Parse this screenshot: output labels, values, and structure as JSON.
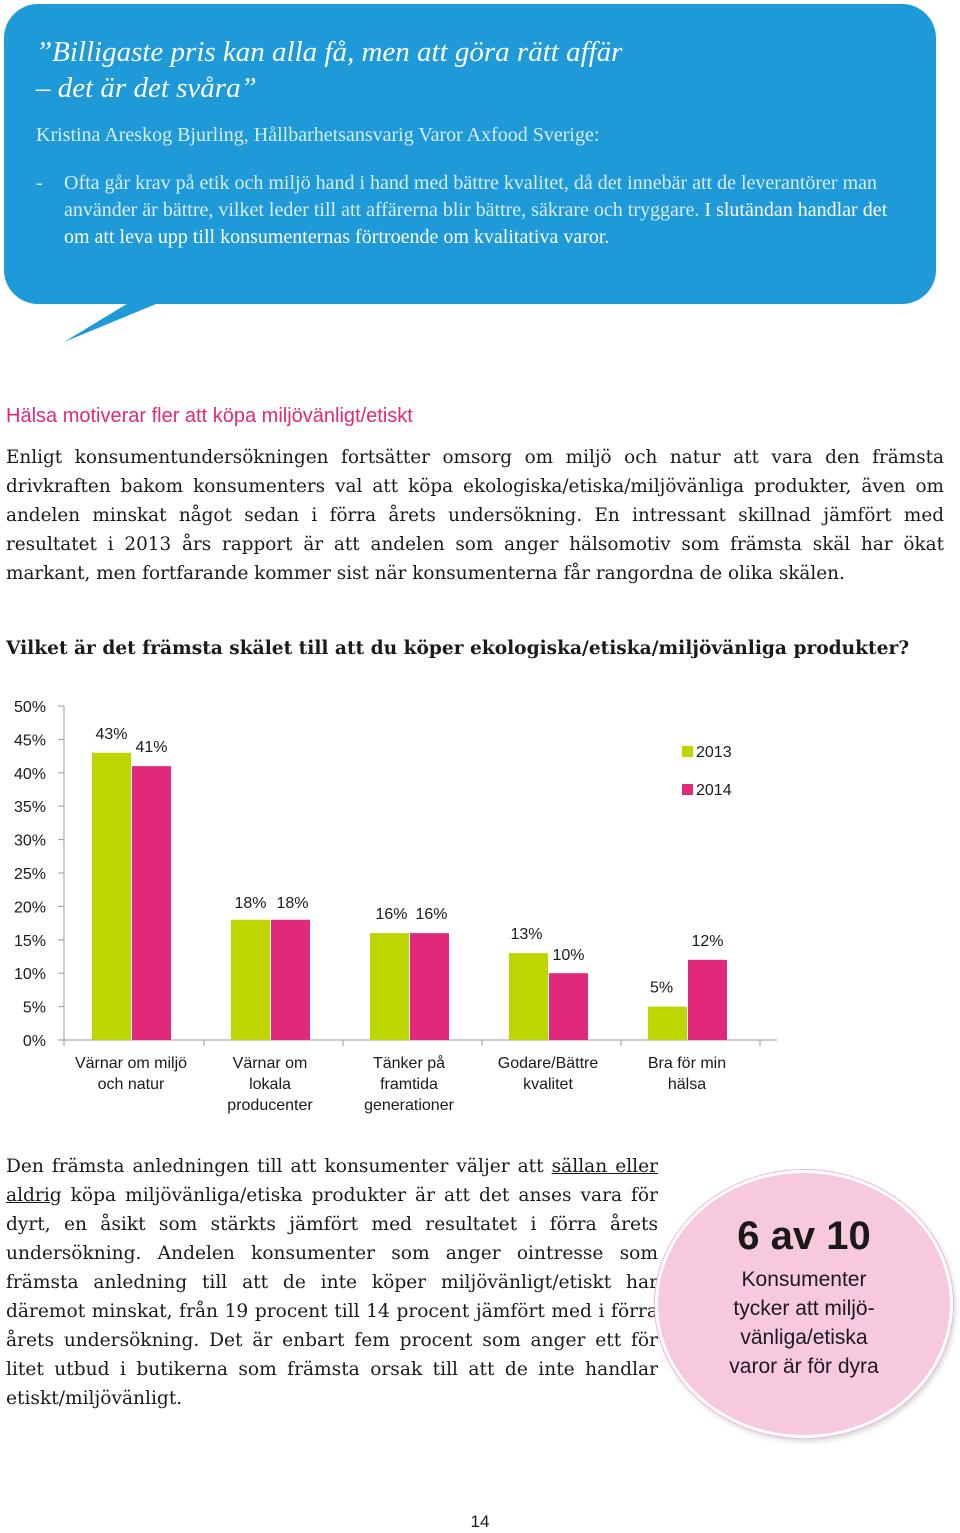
{
  "quote": {
    "line1": "”Billigaste pris kan alla få, men att göra rätt affär",
    "line2": "– det är det svåra”",
    "author": "Kristina Areskog Bjurling, Hållbarhetsansvarig Varor Axfood Sverige:",
    "dash": "-",
    "body_a": "Ofta går krav på etik och miljö hand i hand med bättre kvalitet, då det innebär att de leverantörer man använder är bättre, vilket leder till att affärerna blir bättre, säkrare och tryggare.",
    "body_b": " I slutändan handlar det om att leva upp till konsumenternas förtroende om kvalitativa varor."
  },
  "section_title": "Hälsa motiverar fler att köpa miljövänligt/etiskt",
  "paragraph": "Enligt konsumentundersökningen fortsätter omsorg om miljö och natur att vara den främsta drivkraften bakom konsumenters val att köpa ekologiska/etiska/miljövänliga produkter, även om andelen minskat något sedan i förra årets undersökning. En intressant skillnad jämfört med resultatet i 2013 års rapport är att andelen som anger hälsomotiv som främsta skäl har ökat markant, men fortfarande kommer sist när konsumenterna får rangordna de olika skälen.",
  "question": "Vilket är det främsta skälet till att du köper ekologiska/etiska/miljövänliga produkter?",
  "chart_data": {
    "type": "bar",
    "categories": [
      [
        "Värnar om miljö",
        "och natur"
      ],
      [
        "Värnar om",
        "lokala",
        "producenter"
      ],
      [
        "Tänker på",
        "framtida",
        "generationer"
      ],
      [
        "Godare/Bättre",
        "kvalitet"
      ],
      [
        "Bra för min",
        "hälsa"
      ]
    ],
    "series": [
      {
        "name": "2013",
        "values": [
          43,
          18,
          16,
          13,
          5
        ],
        "labels": [
          "43%",
          "18%",
          "16%",
          "13%",
          "5%"
        ],
        "color": "#bed600"
      },
      {
        "name": "2014",
        "values": [
          41,
          18,
          16,
          10,
          12
        ],
        "labels": [
          "41%",
          "18%",
          "16%",
          "10%",
          "12%"
        ],
        "color": "#e0297a"
      }
    ],
    "yticks": [
      "0%",
      "5%",
      "10%",
      "15%",
      "20%",
      "25%",
      "30%",
      "35%",
      "40%",
      "45%",
      "50%"
    ],
    "ylim": [
      0,
      50
    ],
    "legend_position": "top-right",
    "grid": false
  },
  "bottom_text": {
    "p1": "Den främsta anledningen till att konsumenter väljer att ",
    "underlined": "sällan eller aldrig",
    "p2": " köpa miljövänliga/etiska produkter är att det anses vara för dyrt, en åsikt som stärkts jämfört med resultatet i förra årets undersökning. Andelen konsumenter som anger ointresse som främsta anledning till att de inte köper miljövänligt/etiskt har däremot minskat, från 19 procent till 14 procent jämfört med i förra årets undersökning. Det är enbart fem procent som anger ett för litet utbud i butikerna som främsta orsak till att de inte handlar etiskt/miljövänligt."
  },
  "badge": {
    "big": "6 av 10",
    "small": "Konsumenter\ntycker att miljö-\nvänliga/etiska\nvaror är för dyra"
  },
  "page_number": "14"
}
